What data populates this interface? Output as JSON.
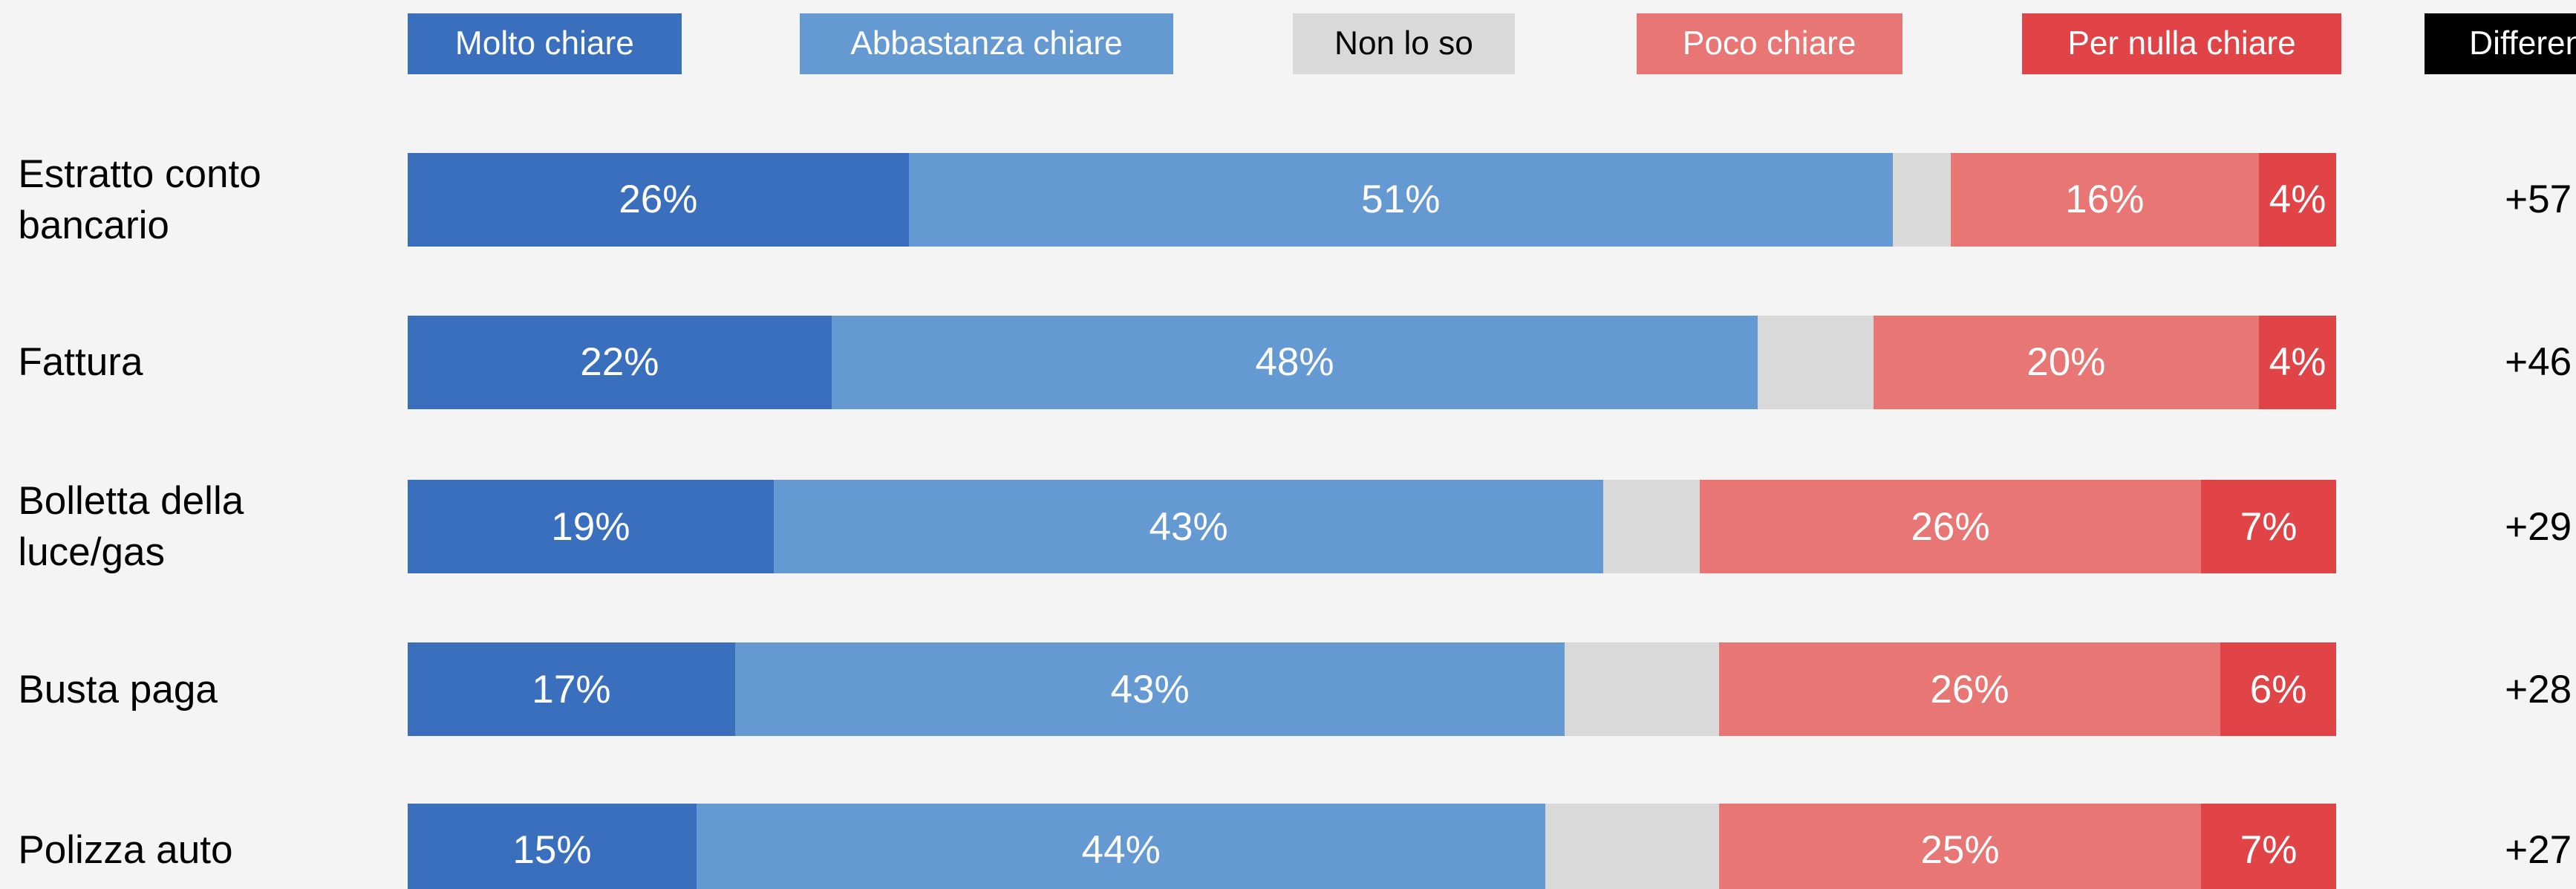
{
  "chart_data": {
    "type": "stacked-bar-horizontal",
    "categories": [
      "Estratto conto bancario",
      "Fattura",
      "Bolletta della luce/gas",
      "Busta paga",
      "Polizza auto"
    ],
    "series": [
      {
        "name": "Molto chiare",
        "color": "#3a6fbe",
        "values": [
          26,
          22,
          19,
          17,
          15
        ],
        "value_labels": [
          "26%",
          "22%",
          "19%",
          "17%",
          "15%"
        ]
      },
      {
        "name": "Abbastanza chiare",
        "color": "#6499d2",
        "values": [
          51,
          48,
          43,
          43,
          44
        ],
        "value_labels": [
          "51%",
          "48%",
          "43%",
          "43%",
          "44%"
        ]
      },
      {
        "name": "Non lo so",
        "color": "#d9d9d9",
        "values": [
          3,
          6,
          5,
          8,
          9
        ],
        "value_labels": [
          null,
          null,
          null,
          null,
          null
        ]
      },
      {
        "name": "Poco chiare",
        "color": "#e77674",
        "values": [
          16,
          20,
          26,
          26,
          25
        ],
        "value_labels": [
          "16%",
          "20%",
          "26%",
          "26%",
          "25%"
        ]
      },
      {
        "name": "Per nulla chiare",
        "color": "#e04446",
        "values": [
          4,
          4,
          7,
          6,
          7
        ],
        "value_labels": [
          "4%",
          "4%",
          "7%",
          "6%",
          "7%"
        ]
      }
    ],
    "xlim": [
      0,
      100
    ],
    "differences": {
      "title": "Differenza",
      "values": [
        57,
        46,
        29,
        28,
        27
      ],
      "value_labels": [
        "+57",
        "+46",
        "+29",
        "+28",
        "+27"
      ]
    }
  }
}
